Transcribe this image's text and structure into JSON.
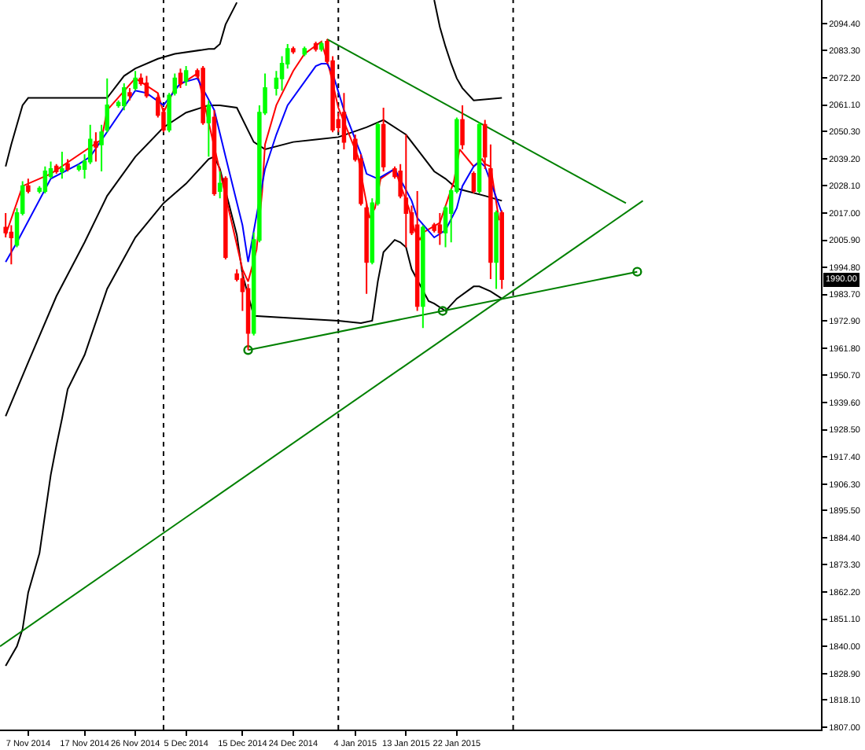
{
  "chart_data": {
    "type": "candlestick",
    "x": [
      "2014-11-03",
      "2014-11-04",
      "2014-11-05",
      "2014-11-06",
      "2014-11-07",
      "2014-11-09",
      "2014-11-10",
      "2014-11-11",
      "2014-11-12",
      "2014-11-13",
      "2014-11-14",
      "2014-11-16",
      "2014-11-17",
      "2014-11-18",
      "2014-11-19",
      "2014-11-20",
      "2014-11-21",
      "2014-11-23",
      "2014-11-24",
      "2014-11-25",
      "2014-11-26",
      "2014-11-27",
      "2014-11-28",
      "2014-11-30",
      "2014-12-01",
      "2014-12-02",
      "2014-12-03",
      "2014-12-04",
      "2014-12-05",
      "2014-12-07",
      "2014-12-08",
      "2014-12-09",
      "2014-12-10",
      "2014-12-11",
      "2014-12-12",
      "2014-12-14",
      "2014-12-15",
      "2014-12-16",
      "2014-12-17",
      "2014-12-18",
      "2014-12-19",
      "2014-12-21",
      "2014-12-22",
      "2014-12-23",
      "2014-12-24",
      "2014-12-26",
      "2014-12-28",
      "2014-12-29",
      "2014-12-30",
      "2014-12-31",
      "2015-01-01",
      "2015-01-02",
      "2015-01-04",
      "2015-01-05",
      "2015-01-06",
      "2015-01-07",
      "2015-01-08",
      "2015-01-09",
      "2015-01-11",
      "2015-01-12",
      "2015-01-13",
      "2015-01-14",
      "2015-01-15",
      "2015-01-16",
      "2015-01-18",
      "2015-01-19",
      "2015-01-20",
      "2015-01-21",
      "2015-01-22",
      "2015-01-23",
      "2015-01-25",
      "2015-01-26",
      "2015-01-27",
      "2015-01-28",
      "2015-01-29",
      "2015-01-30"
    ],
    "series": [
      {
        "type": "line",
        "color": "#000000",
        "x": [
          "2014-11-03",
          "2014-11-04",
          "2014-11-05",
          "2014-11-06",
          "2014-11-07",
          "2014-11-14",
          "2014-11-21",
          "2014-11-24",
          "2014-11-26",
          "2014-11-30",
          "2014-12-03",
          "2014-12-09",
          "2014-12-10",
          "2014-12-11",
          "2014-12-12",
          "2014-12-14",
          "2014-12-15",
          "2015-01-18",
          "2015-01-19",
          "2015-01-20",
          "2015-01-21",
          "2015-01-22",
          "2015-01-23",
          "2015-01-25",
          "2015-01-30"
        ],
        "values": [
          2036,
          2045,
          2053,
          2061,
          2064,
          2064,
          2064,
          2073,
          2076,
          2080,
          2082,
          2084,
          2084,
          2086,
          2094,
          2103,
          null,
          2104,
          2093,
          2085,
          2078,
          2072,
          2068,
          2063,
          2064
        ]
      },
      {
        "type": "line",
        "color": "#000000",
        "x": [
          "2014-11-03",
          "2014-11-07",
          "2014-11-12",
          "2014-11-17",
          "2014-11-21",
          "2014-11-26",
          "2014-12-01",
          "2014-12-05",
          "2014-12-09",
          "2014-12-11",
          "2014-12-14",
          "2014-12-17",
          "2014-12-19",
          "2014-12-24",
          "2014-12-28",
          "2015-01-01",
          "2015-01-06",
          "2015-01-09",
          "2015-01-13",
          "2015-01-15",
          "2015-01-18",
          "2015-01-20",
          "2015-01-22",
          "2015-01-27",
          "2015-01-30"
        ],
        "values": [
          1934,
          1956,
          1983,
          2005,
          2024,
          2040,
          2052,
          2058,
          2061,
          2061,
          2060,
          2046,
          2043,
          2046,
          2047,
          2048,
          2052,
          2055,
          2049,
          2043,
          2034,
          2031,
          2027,
          2024,
          2022
        ]
      },
      {
        "type": "line",
        "color": "#000000",
        "x": [
          "2014-11-03",
          "2014-11-04",
          "2014-11-05",
          "2014-11-06",
          "2014-11-07",
          "2014-11-09",
          "2014-11-10",
          "2014-11-11",
          "2014-11-12",
          "2014-11-13",
          "2014-11-14",
          "2014-11-17",
          "2014-11-21",
          "2014-11-26",
          "2014-12-01",
          "2014-12-05",
          "2014-12-09",
          "2014-12-10",
          "2014-12-11",
          "2014-12-14",
          "2014-12-15",
          "2014-12-17",
          "2014-12-24",
          "2015-01-01",
          "2015-01-05",
          "2015-01-07",
          "2015-01-08",
          "2015-01-09",
          "2015-01-11",
          "2015-01-12",
          "2015-01-13",
          "2015-01-14",
          "2015-01-17",
          "2015-01-18",
          "2015-01-20",
          "2015-01-22",
          "2015-01-25",
          "2015-01-26",
          "2015-01-28",
          "2015-01-30"
        ],
        "values": [
          1832,
          1836,
          1840,
          1847,
          1862,
          1878,
          1894,
          1910,
          1922,
          1933,
          1945,
          1959,
          1986,
          2007,
          2021,
          2029,
          2039,
          2040,
          2035,
          2008,
          1992,
          1975,
          1974,
          1973,
          1972,
          1973,
          1989,
          2001,
          2006,
          2005,
          2003,
          1994,
          1981,
          1980,
          1977,
          1982,
          1987,
          1987,
          1985,
          1982
        ]
      },
      {
        "type": "line",
        "color": "#ff0000",
        "x": [
          "2014-11-03",
          "2014-11-06",
          "2014-11-11",
          "2014-11-20",
          "2014-11-21",
          "2014-11-26",
          "2014-11-30",
          "2014-12-01",
          "2014-12-03",
          "2014-12-07",
          "2014-12-15",
          "2014-12-16",
          "2014-12-17T12:00",
          "2014-12-18T12:00",
          "2014-12-19",
          "2014-12-21",
          "2014-12-24",
          "2014-12-26",
          "2014-12-29",
          "2014-12-30T12:00",
          "2015-01-01",
          "2015-01-04T12:00",
          "2015-01-05T12:00",
          "2015-01-06T12:00",
          "2015-01-07T12:00",
          "2015-01-08T12:00",
          "2015-01-11",
          "2015-01-13T12:00",
          "2015-01-14T12:00",
          "2015-01-15T12:00",
          "2015-01-16",
          "2015-01-19",
          "2015-01-21T12:00",
          "2015-01-22T12:00",
          "2015-01-25",
          "2015-01-26T12:00",
          "2015-01-27",
          "2015-01-28",
          "2015-01-29T12:00"
        ],
        "values": [
          2008,
          2028,
          2033,
          2047,
          2059,
          2072,
          2066,
          2058,
          2068,
          2074,
          1994,
          1989,
          2002,
          2026,
          2045,
          2061,
          2075,
          2082,
          2087,
          2075,
          2060,
          2040,
          2027,
          2015,
          2019,
          2031,
          2035,
          2019,
          2010,
          2006,
          2009,
          2013,
          2030,
          2043,
          2036,
          2039,
          2037,
          2036,
          2014
        ]
      },
      {
        "type": "line",
        "color": "#0000ff",
        "x": [
          "2014-11-03",
          "2014-11-05",
          "2014-11-11",
          "2014-11-16",
          "2014-11-18",
          "2014-11-26",
          "2014-11-28",
          "2014-12-01",
          "2014-12-04",
          "2014-12-07",
          "2014-12-10",
          "2014-12-12",
          "2014-12-15",
          "2014-12-16",
          "2014-12-19",
          "2014-12-21",
          "2014-12-23",
          "2014-12-28",
          "2014-12-29",
          "2014-12-30",
          "2014-12-31",
          "2015-01-02",
          "2015-01-05",
          "2015-01-06",
          "2015-01-08",
          "2015-01-11",
          "2015-01-14",
          "2015-01-15",
          "2015-01-18",
          "2015-01-20",
          "2015-01-22",
          "2015-01-23",
          "2015-01-25",
          "2015-01-26",
          "2015-01-27",
          "2015-01-30"
        ],
        "values": [
          1997,
          2005,
          2031,
          2037,
          2040,
          2067,
          2066,
          2061,
          2070,
          2072,
          2059,
          2040,
          2012,
          1997,
          2035,
          2049,
          2061,
          2077,
          2078,
          2078,
          2074,
          2059,
          2041,
          2033,
          2031,
          2035,
          2022,
          2015,
          2007,
          2010,
          2019,
          2028,
          2036,
          2038,
          2036,
          2017
        ]
      },
      {
        "type": "line",
        "color": "#008000",
        "x": [
          "2014-12-30",
          "2015-02-21"
        ],
        "values": [
          2088,
          2021
        ]
      },
      {
        "type": "line",
        "color": "#008000",
        "x": [
          "2014-11-02",
          "2015-02-24"
        ],
        "values": [
          1840,
          2022
        ]
      },
      {
        "type": "line",
        "color": "#008000",
        "marker": "circle",
        "x": [
          "2014-12-16",
          "2015-01-19T12:00",
          "2015-02-23"
        ],
        "values": [
          1961,
          1977,
          1993
        ]
      },
      {
        "ohlc": [
          [
            2011,
            2017,
            2007,
            2009
          ],
          [
            2009,
            2012,
            1996,
            2007
          ],
          [
            2004,
            2019,
            2003,
            2017
          ],
          [
            2017,
            2030,
            2016,
            2028
          ],
          [
            2028,
            2031,
            2025,
            2026
          ],
          [
            2026,
            2028,
            2025,
            2027
          ],
          [
            2026,
            2036,
            2025,
            2034
          ],
          [
            2032,
            2038,
            2031,
            2035
          ],
          [
            2036,
            2037,
            2033,
            2034
          ],
          [
            2034,
            2042,
            2031,
            2035
          ],
          [
            2037,
            2039,
            2034,
            2035
          ],
          [
            2035,
            2037,
            2034,
            2036
          ],
          [
            2035,
            2041,
            2031,
            2038
          ],
          [
            2038,
            2053,
            2037,
            2047
          ],
          [
            2046,
            2050,
            2038,
            2044
          ],
          [
            2045,
            2053,
            2034,
            2050
          ],
          [
            2051,
            2072,
            2050,
            2061
          ],
          [
            2061,
            2063,
            2060,
            2062
          ],
          [
            2061,
            2070,
            2059,
            2068
          ],
          [
            2066,
            2068,
            2063,
            2065
          ],
          [
            2068,
            2075,
            2067,
            2072
          ],
          [
            2072,
            2074,
            2069,
            2070
          ],
          [
            2070,
            2073,
            2064,
            2065
          ],
          [
            2064,
            2066,
            2056,
            2057
          ],
          [
            2058,
            2060,
            2050,
            2051
          ],
          [
            2051,
            2066,
            2050,
            2065
          ],
          [
            2066,
            2074,
            2065,
            2072
          ],
          [
            2074,
            2076,
            2068,
            2070
          ],
          [
            2071,
            2077,
            2069,
            2075
          ],
          [
            2075,
            2076,
            2072,
            2073
          ],
          [
            2076,
            2077,
            2053,
            2054
          ],
          [
            2054,
            2063,
            2040,
            2061
          ],
          [
            2056,
            2059,
            2024,
            2025
          ],
          [
            2026,
            2034,
            2023,
            2029
          ],
          [
            2031,
            2032,
            1998,
            1999
          ],
          [
            1992,
            1994,
            1989,
            1990
          ],
          [
            1990,
            1993,
            1977,
            1985
          ],
          [
            1986,
            1988,
            1961,
            1968
          ],
          [
            1968,
            2009,
            1967,
            2006
          ],
          [
            2006,
            2061,
            2005,
            2058
          ],
          [
            2058,
            2074,
            2057,
            2068
          ],
          [
            2068,
            2075,
            2065,
            2072
          ],
          [
            2072,
            2081,
            2067,
            2078
          ],
          [
            2078,
            2086,
            2076,
            2084
          ],
          [
            2084,
            2085,
            2082,
            2083
          ],
          [
            2082,
            2085,
            2081,
            2084
          ],
          [
            2086,
            2087,
            2083,
            2084
          ],
          [
            2084,
            2087,
            2083,
            2086
          ],
          [
            2087,
            2088,
            2078,
            2079
          ],
          [
            2079,
            2081,
            2050,
            2051
          ],
          [
            2055,
            2058,
            2050,
            2052
          ],
          [
            2058,
            2066,
            2043,
            2046
          ],
          [
            2047,
            2049,
            2038,
            2039
          ],
          [
            2039,
            2041,
            2020,
            2021
          ],
          [
            2019,
            2021,
            1984,
            1997
          ],
          [
            1997,
            2023,
            1996,
            2021
          ],
          [
            2021,
            2054,
            2020,
            2053
          ],
          [
            2053,
            2060,
            2034,
            2036
          ],
          [
            2035,
            2036,
            2031,
            2032
          ],
          [
            2034,
            2037,
            2023,
            2024
          ],
          [
            2023,
            2049,
            2003,
            2017
          ],
          [
            2017,
            2020,
            2008,
            2009
          ],
          [
            2012,
            2026,
            1977,
            1979
          ],
          [
            1979,
            2012,
            1970,
            2011
          ],
          [
            2012,
            2013,
            2009,
            2010
          ],
          [
            2012,
            2017,
            2004,
            2009
          ],
          [
            2009,
            2020,
            2003,
            2019
          ],
          [
            2017,
            2027,
            2005,
            2026
          ],
          [
            2026,
            2056,
            2025,
            2055
          ],
          [
            2055,
            2061,
            2043,
            2045
          ],
          [
            2033,
            2034,
            2025,
            2026
          ],
          [
            2026,
            2054,
            2025,
            2053
          ],
          [
            2053,
            2055,
            2035,
            2040
          ],
          [
            2035,
            2045,
            1990,
            1997
          ],
          [
            1997,
            2018,
            1986,
            2017
          ],
          [
            2017,
            2018,
            1986,
            1990
          ]
        ],
        "colors": [
          "#ff0000",
          "#ff0000",
          "#00ff00",
          "#00ff00",
          "#ff0000",
          "#00ff00",
          "#00ff00",
          "#00ff00",
          "#ff0000",
          "#00ff00",
          "#ff0000",
          "#00ff00",
          "#00ff00",
          "#00ff00",
          "#ff0000",
          "#00ff00",
          "#00ff00",
          "#00ff00",
          "#00ff00",
          "#ff0000",
          "#00ff00",
          "#ff0000",
          "#ff0000",
          "#ff0000",
          "#ff0000",
          "#00ff00",
          "#00ff00",
          "#ff0000",
          "#00ff00",
          "#ff0000",
          "#ff0000",
          "#00ff00",
          "#ff0000",
          "#00ff00",
          "#ff0000",
          "#ff0000",
          "#ff0000",
          "#ff0000",
          "#00ff00",
          "#00ff00",
          "#00ff00",
          "#00ff00",
          "#00ff00",
          "#00ff00",
          "#ff0000",
          "#00ff00",
          "#ff0000",
          "#00ff00",
          "#ff0000",
          "#ff0000",
          "#ff0000",
          "#ff0000",
          "#ff0000",
          "#ff0000",
          "#ff0000",
          "#00ff00",
          "#00ff00",
          "#ff0000",
          "#ff0000",
          "#ff0000",
          "#ff0000",
          "#ff0000",
          "#ff0000",
          "#00ff00",
          "#ff0000",
          "#ff0000",
          "#00ff00",
          "#00ff00",
          "#00ff00",
          "#ff0000",
          "#ff0000",
          "#00ff00",
          "#ff0000",
          "#ff0000",
          "#00ff00",
          "#ff0000"
        ],
        "value_labels": [
          null,
          null,
          null,
          null,
          null,
          null,
          null,
          null,
          null,
          null,
          null,
          null,
          null,
          null,
          null,
          null,
          null,
          null,
          null,
          null,
          null,
          null,
          null,
          null,
          null,
          null,
          null,
          null,
          null,
          null,
          null,
          null,
          null,
          null,
          null,
          null,
          null,
          null,
          null,
          null,
          null,
          null,
          null,
          null,
          null,
          null,
          null,
          null,
          null,
          null,
          null,
          null,
          null,
          null,
          null,
          null,
          null,
          null,
          null,
          null,
          null,
          null,
          null,
          null,
          null,
          null,
          null,
          null,
          null,
          null,
          null,
          null,
          null,
          null,
          null,
          "1990.00"
        ]
      }
    ],
    "xlim": [
      "2014-11-02",
      "2015-03-27T14:00"
    ],
    "xticks": [
      {
        "value": "2014-11-07",
        "label": "7 Nov 2014"
      },
      {
        "value": "2014-11-17",
        "label": "17 Nov 2014"
      },
      {
        "value": "2014-11-26",
        "label": "26 Nov 2014"
      },
      {
        "value": "2014-12-05",
        "label": "5 Dec 2014"
      },
      {
        "value": "2014-12-15",
        "label": "15 Dec 2014"
      },
      {
        "value": "2014-12-24",
        "label": "24 Dec 2014"
      },
      {
        "value": "2015-01-04",
        "label": "4 Jan 2015"
      },
      {
        "value": "2015-01-13",
        "label": "13 Jan 2015"
      },
      {
        "value": "2015-01-22",
        "label": "22 Jan 2015"
      }
    ],
    "ylim": [
      1806,
      2104
    ],
    "yticks": [
      {
        "value": 2094.4,
        "label": "2094.40"
      },
      {
        "value": 2083.3,
        "label": "2083.30"
      },
      {
        "value": 2072.2,
        "label": "2072.20"
      },
      {
        "value": 2061.1,
        "label": "2061.10"
      },
      {
        "value": 2050.3,
        "label": "2050.30"
      },
      {
        "value": 2039.2,
        "label": "2039.20"
      },
      {
        "value": 2028.1,
        "label": "2028.10"
      },
      {
        "value": 2017,
        "label": "2017.00"
      },
      {
        "value": 2005.9,
        "label": "2005.90"
      },
      {
        "value": 1994.8,
        "label": "1994.80"
      },
      {
        "value": 1983.7,
        "label": "1983.70"
      },
      {
        "value": 1972.9,
        "label": "1972.90"
      },
      {
        "value": 1961.8,
        "label": "1961.80"
      },
      {
        "value": 1950.7,
        "label": "1950.70"
      },
      {
        "value": 1939.6,
        "label": "1939.60"
      },
      {
        "value": 1928.5,
        "label": "1928.50"
      },
      {
        "value": 1917.4,
        "label": "1917.40"
      },
      {
        "value": 1906.3,
        "label": "1906.30"
      },
      {
        "value": 1895.5,
        "label": "1895.50"
      },
      {
        "value": 1884.4,
        "label": "1884.40"
      },
      {
        "value": 1873.3,
        "label": "1873.30"
      },
      {
        "value": 1862.2,
        "label": "1862.20"
      },
      {
        "value": 1851.1,
        "label": "1851.10"
      },
      {
        "value": 1840,
        "label": "1840.00"
      },
      {
        "value": 1828.9,
        "label": "1828.90"
      },
      {
        "value": 1818.1,
        "label": "1818.10"
      },
      {
        "value": 1807,
        "label": "1807.00"
      }
    ],
    "ref_lines": [
      {
        "axis": "x",
        "value": "2014-12-01",
        "color": "#000000",
        "line_style": "dotted"
      },
      {
        "axis": "x",
        "value": "2015-01-01",
        "color": "#000000",
        "line_style": "dotted"
      },
      {
        "axis": "x",
        "value": "2015-02-01",
        "color": "#000000",
        "line_style": "dotted"
      }
    ]
  }
}
